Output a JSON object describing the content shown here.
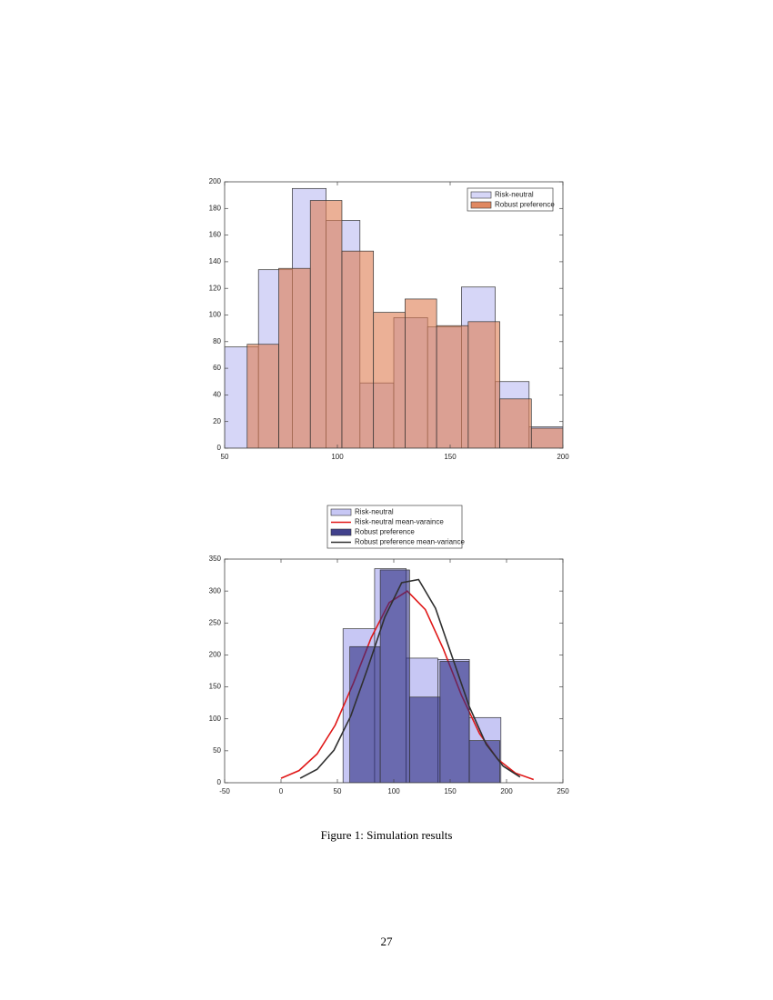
{
  "chart_data": [
    {
      "type": "histogram",
      "xlim": [
        50,
        200
      ],
      "xticks": [
        50,
        100,
        150,
        200
      ],
      "ylim": [
        0,
        200
      ],
      "yticks": [
        0,
        20,
        40,
        60,
        80,
        100,
        120,
        140,
        160,
        180,
        200
      ],
      "legend": "upper right",
      "series": [
        {
          "name": "Risk-neutral",
          "color": "#c8c8f4",
          "bins": [
            50,
            65,
            80,
            95,
            110,
            125,
            140,
            155,
            170,
            185,
            200
          ],
          "values": [
            76,
            134,
            195,
            171,
            49,
            98,
            91,
            121,
            50,
            16
          ]
        },
        {
          "name": "Robust preference",
          "color": "#dd7b50",
          "bins": [
            60,
            74,
            88,
            102,
            116,
            130,
            144,
            158,
            172,
            186,
            200
          ],
          "values": [
            78,
            135,
            186,
            148,
            102,
            112,
            92,
            95,
            37,
            15
          ]
        }
      ]
    },
    {
      "type": "histogram",
      "xlim": [
        -50,
        250
      ],
      "xticks": [
        -50,
        0,
        50,
        100,
        150,
        200,
        250
      ],
      "ylim": [
        0,
        350
      ],
      "yticks": [
        0,
        50,
        100,
        150,
        200,
        250,
        300,
        350
      ],
      "legend": "above",
      "series": [
        {
          "name": "Risk-neutral",
          "color": "#b4b4f0",
          "bins": [
            55,
            83,
            111,
            139,
            167,
            195
          ],
          "values": [
            241,
            335,
            195,
            193,
            102
          ]
        },
        {
          "name": "Risk-neutral mean-varaince",
          "color": "#e01818",
          "x": [
            0,
            16,
            32,
            48,
            64,
            80,
            96,
            112,
            128,
            144,
            160,
            176,
            192,
            208,
            224
          ],
          "values": [
            7,
            19,
            45,
            90,
            155,
            227,
            282,
            300,
            271,
            209,
            137,
            77,
            37,
            15,
            5
          ]
        },
        {
          "name": "Robust preference",
          "color": "#2c2c80",
          "bins": [
            61,
            88,
            114,
            141,
            167,
            194
          ],
          "values": [
            213,
            333,
            134,
            190,
            66
          ]
        },
        {
          "name": "Robust preference mean-variance",
          "color": "#303030",
          "x": [
            17,
            32,
            47,
            62,
            77,
            92,
            107,
            122,
            137,
            152,
            167,
            182,
            197,
            212
          ],
          "values": [
            7,
            21,
            51,
            105,
            180,
            259,
            313,
            318,
            273,
            196,
            119,
            60,
            26,
            9
          ]
        }
      ]
    }
  ],
  "caption": "Figure 1: Simulation results",
  "page_number": "27"
}
